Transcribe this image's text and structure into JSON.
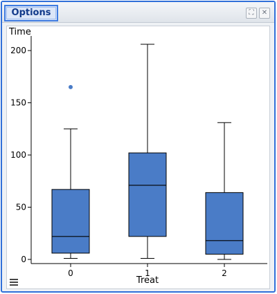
{
  "window": {
    "options_label": "Options"
  },
  "chart_data": {
    "type": "boxplot",
    "ylabel": "Time",
    "xlabel": "Treat",
    "ylim": [
      0,
      210
    ],
    "yticks": [
      0,
      50,
      100,
      150,
      200
    ],
    "categories": [
      "0",
      "1",
      "2"
    ],
    "boxes": [
      {
        "category": "0",
        "min": 1,
        "q1": 6,
        "median": 22,
        "q3": 67,
        "max": 125,
        "outliers": [
          165
        ]
      },
      {
        "category": "1",
        "min": 1,
        "q1": 22,
        "median": 71,
        "q3": 102,
        "max": 206,
        "outliers": []
      },
      {
        "category": "2",
        "min": 0,
        "q1": 5,
        "median": 18,
        "q3": 64,
        "max": 131,
        "outliers": []
      }
    ],
    "box_color": "#4a7cc7",
    "grid": false
  }
}
